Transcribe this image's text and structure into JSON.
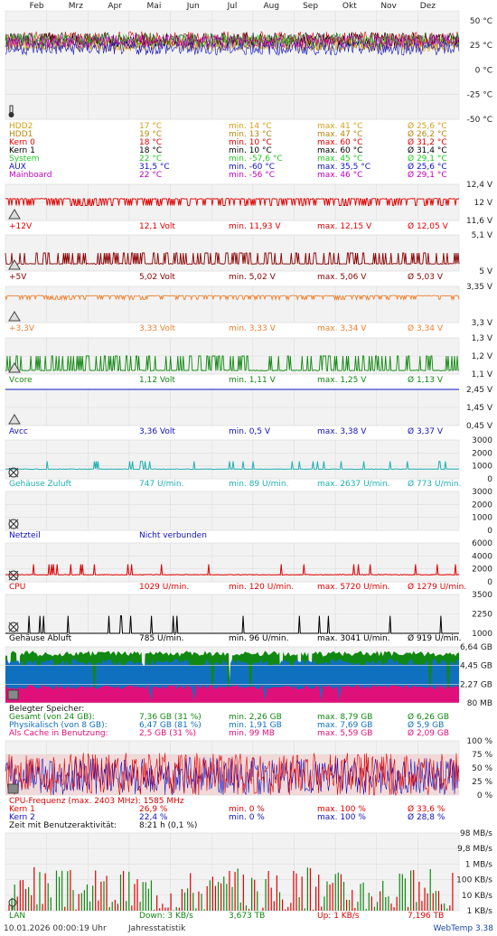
{
  "months": [
    "Feb",
    "Mrz",
    "Apr",
    "Mai",
    "Jun",
    "Jul",
    "Aug",
    "Sep",
    "Okt",
    "Nov",
    "Dez"
  ],
  "temperature": {
    "axis": [
      "50 °C",
      "25 °C",
      "0 °C",
      "-25 °C",
      "-50 °C"
    ],
    "axis_values": [
      50,
      25,
      0,
      -25,
      -50
    ],
    "rows": [
      {
        "name": "HDD2",
        "cur": "17 °C",
        "min": "min. 14 °C",
        "max": "max. 41 °C",
        "avg": "Ø 25,6 °C",
        "color": "#d4a017"
      },
      {
        "name": "HDD1",
        "cur": "19 °C",
        "min": "min. 13 °C",
        "max": "max. 47 °C",
        "avg": "Ø 26,2 °C",
        "color": "#b8860b"
      },
      {
        "name": "Kern 0",
        "cur": "18 °C",
        "min": "min. 10 °C",
        "max": "max. 60 °C",
        "avg": "Ø 31,2 °C",
        "color": "#e00000"
      },
      {
        "name": "Kern 1",
        "cur": "18 °C",
        "min": "min. 10 °C",
        "max": "max. 60 °C",
        "avg": "Ø 31,4 °C",
        "color": "#000000"
      },
      {
        "name": "System",
        "cur": "22 °C",
        "min": "min. -57,6 °C",
        "max": "max. 45 °C",
        "avg": "Ø 29,1 °C",
        "color": "#22cc22"
      },
      {
        "name": "AUX",
        "cur": "31,5 °C",
        "min": "min. -60 °C",
        "max": "max. 35,5 °C",
        "avg": "Ø 25,6 °C",
        "color": "#1010c0"
      },
      {
        "name": "Mainboard",
        "cur": "22 °C",
        "min": "min. -56 °C",
        "max": "max. 46 °C",
        "avg": "Ø 29,1 °C",
        "color": "#c000c0"
      }
    ]
  },
  "voltages": [
    {
      "id": "v12",
      "axis": [
        "12,4 V",
        "12 V",
        "11,6 V"
      ],
      "axis_values": [
        12.4,
        12.0,
        11.6
      ],
      "name": "+12V",
      "cur": "12,1 Volt",
      "min": "min. 11,93 V",
      "max": "max. 12,15 V",
      "avg": "Ø 12,05 V",
      "color": "#e00000",
      "level": 12.08,
      "alt": 11.93
    },
    {
      "id": "v5",
      "axis": [
        "5,1 V",
        "5 V"
      ],
      "axis_values": [
        5.1,
        5.0
      ],
      "name": "+5V",
      "cur": "5,02 Volt",
      "min": "min. 5,02 V",
      "max": "max. 5,06 V",
      "avg": "Ø 5,03 V",
      "color": "#8b0000",
      "level": 5.02,
      "alt": 5.05
    },
    {
      "id": "v33",
      "axis": [
        "3,35 V",
        "3,3 V"
      ],
      "axis_values": [
        3.35,
        3.3
      ],
      "name": "+3,3V",
      "cur": "3,33 Volt",
      "min": "min. 3,33 V",
      "max": "max. 3,34 V",
      "avg": "Ø 3,34 V",
      "color": "#f08030",
      "level": 3.337,
      "alt": 3.332
    },
    {
      "id": "vcore",
      "axis": [
        "1,3 V",
        "1,2 V",
        "1,1 V"
      ],
      "axis_values": [
        1.3,
        1.2,
        1.1
      ],
      "name": "Vcore",
      "cur": "1,12 Volt",
      "min": "min. 1,11 V",
      "max": "max. 1,25 V",
      "avg": "Ø 1,13 V",
      "color": "#118811",
      "level": 1.12,
      "alt": 1.2
    },
    {
      "id": "avcc",
      "axis": [
        "2,45 V",
        "1,45 V",
        "0,45 V"
      ],
      "axis_values": [
        2.45,
        1.45,
        0.45
      ],
      "name": "Avcc",
      "cur": "3,36 Volt",
      "min": "min. 0,5 V",
      "max": "max. 3,38 V",
      "avg": "Ø 3,37 V",
      "color": "#1010c0",
      "level": 3.37,
      "alt": 3.36
    }
  ],
  "fans": [
    {
      "id": "zuluft",
      "axis": [
        "3000",
        "2000",
        "1000",
        "0"
      ],
      "axis_values": [
        3000,
        2000,
        1000,
        0
      ],
      "name": "Gehäuse Zuluft",
      "cur": "747 U/min.",
      "min": "min. 89 U/min.",
      "max": "max. 2637 U/min.",
      "avg": "Ø 773 U/min.",
      "color": "#20b0b0",
      "level": 750
    },
    {
      "id": "netzteil",
      "axis": [
        "3000",
        "2000",
        "1000",
        "0"
      ],
      "axis_values": [
        3000,
        2000,
        1000,
        0
      ],
      "name": "Netzteil",
      "cur": "Nicht verbunden",
      "min": "",
      "max": "",
      "avg": "",
      "color": "#1010c0",
      "level": null
    },
    {
      "id": "cpu",
      "axis": [
        "6000",
        "4000",
        "2000",
        "0"
      ],
      "axis_values": [
        6000,
        4000,
        2000,
        0
      ],
      "name": "CPU",
      "cur": "1029 U/min.",
      "min": "min. 120 U/min.",
      "max": "max. 5720 U/min.",
      "avg": "Ø 1279 U/min.",
      "color": "#e00000",
      "level": 1100
    },
    {
      "id": "abluft",
      "axis": [
        "3500",
        "2250",
        "1000"
      ],
      "axis_values": [
        3500,
        2250,
        1000
      ],
      "name": "Gehäuse Abluft",
      "cur": "785 U/min.",
      "min": "min. 96 U/min.",
      "max": "max. 3041 U/min.",
      "avg": "Ø 919 U/min.",
      "color": "#000000",
      "level": 900
    }
  ],
  "memory": {
    "axis": [
      "6,64 GB",
      "4,45 GB",
      "2,27 GB",
      "80 MB"
    ],
    "axis_values": [
      6.64,
      4.45,
      2.27,
      0.08
    ],
    "header": "Belegter Speicher:",
    "rows": [
      {
        "name": "Gesamt (von 24 GB):",
        "cur": "7,36 GB (31 %)",
        "min": "min. 2,26 GB",
        "max": "max. 8,79 GB",
        "avg": "Ø 6,26 GB",
        "color": "#118811"
      },
      {
        "name": "Physikalisch (von 8 GB):",
        "cur": "6,47 GB (81 %)",
        "min": "min. 1,91 GB",
        "max": "max. 7,69 GB",
        "avg": "Ø 5,9 GB",
        "color": "#1070c0"
      },
      {
        "name": "Als Cache in Benutzung:",
        "cur": "2,5 GB (31 %)",
        "min": "min. 99 MB",
        "max": "max. 5,59 GB",
        "avg": "Ø 2,09 GB",
        "color": "#e0107a"
      }
    ]
  },
  "cpu": {
    "axis": [
      "100 %",
      "75 %",
      "50 %",
      "25 %",
      "0 %"
    ],
    "axis_values": [
      100,
      75,
      50,
      25,
      0
    ],
    "freq": "CPU-Frequenz (max. 2403 MHz): 1585 MHz",
    "rows": [
      {
        "name": "Kern 1",
        "cur": "26,9 %",
        "min": "min. 0 %",
        "max": "max. 100 %",
        "avg": "Ø 33,6 %",
        "color": "#e00000"
      },
      {
        "name": "Kern 2",
        "cur": "22,4 %",
        "min": "min. 0 %",
        "max": "max. 100 %",
        "avg": "Ø 28,8 %",
        "color": "#1010c0"
      }
    ],
    "activity_label": "Zeit mit Benutzeraktivität:",
    "activity_value": "8:21 h (0,1 %)"
  },
  "lan": {
    "axis": [
      "98 MB/s",
      "9,8 MB/s",
      "1 MB/s",
      "100 KB/s",
      "10 KB/s",
      "1 KB/s"
    ],
    "axis_values": [
      98000,
      9800,
      1000,
      100,
      10,
      1
    ],
    "name": "LAN",
    "down": "Down: 3 KB/s",
    "down_total": "3,673 TB",
    "up": "Up: 1 KB/s",
    "up_total": "7,196 TB"
  },
  "footer": {
    "date": "10.01.2026 00:00:19 Uhr",
    "annual": "Jahresstatistik",
    "app": "WebTemp 3.38"
  }
}
